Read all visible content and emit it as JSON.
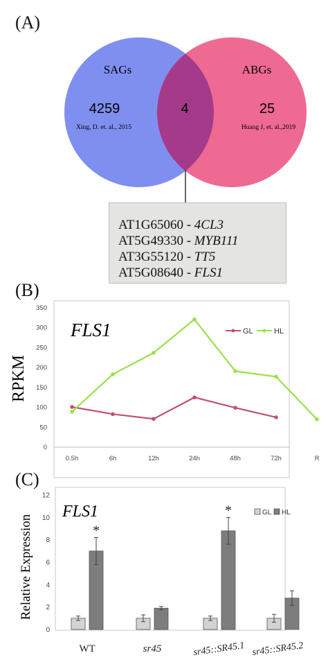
{
  "panels": {
    "a": "(A)",
    "b": "(B)",
    "c": "(C)"
  },
  "venn": {
    "left": {
      "label": "SAGs",
      "count": "4259",
      "citation": "Xing, D. et. al., 2015",
      "color": "#7f8ff0"
    },
    "overlap": {
      "count": "4",
      "color": "#a63a8a"
    },
    "right": {
      "label": "ABGs",
      "count": "25",
      "citation": "Huang J, et. al.,2019",
      "color": "#ee6a93"
    },
    "genes": [
      {
        "id": "AT1G65060",
        "sep": " - ",
        "name": "4CL3"
      },
      {
        "id": "AT5G49330",
        "sep": " - ",
        "name": "MYB111"
      },
      {
        "id": "AT3G55120",
        "sep": " - ",
        "name": "TT5"
      },
      {
        "id": "AT5G08640",
        "sep": " - ",
        "name": "FLS1"
      }
    ]
  },
  "chart_data": [
    {
      "type": "line",
      "title": "FLS1",
      "ylabel": "RPKM",
      "categories": [
        "0.5h",
        "6h",
        "12h",
        "24h",
        "48h",
        "72h",
        "R"
      ],
      "ylim": [
        0,
        350
      ],
      "yticks": [
        0,
        50,
        100,
        150,
        200,
        250,
        300,
        350
      ],
      "legend_position": "top-right",
      "grid": false,
      "series": [
        {
          "name": "GL",
          "color": "#c0506e",
          "values": [
            101,
            83,
            71,
            125,
            99,
            75,
            null
          ]
        },
        {
          "name": "HL",
          "color": "#9be04a",
          "values": [
            89,
            183,
            237,
            321,
            191,
            177,
            70
          ]
        }
      ]
    },
    {
      "type": "bar",
      "title": "FLS1",
      "ylabel": "Relative Expression",
      "categories": [
        "WT",
        "sr45",
        "sr45::SR45.1",
        "sr45::SR45.2"
      ],
      "ylim": [
        0,
        12
      ],
      "yticks": [
        0,
        2,
        4,
        6,
        8,
        10,
        12
      ],
      "legend_position": "top-right",
      "grid": false,
      "series": [
        {
          "name": "GL",
          "color": "#d3d3d3",
          "values": [
            1.0,
            1.0,
            1.0,
            1.0
          ],
          "errors": [
            0.2,
            0.3,
            0.2,
            0.35
          ]
        },
        {
          "name": "HL",
          "color": "#7d7d7d",
          "values": [
            7.0,
            1.9,
            8.8,
            2.8
          ],
          "errors": [
            1.2,
            0.15,
            1.2,
            0.65
          ]
        }
      ],
      "significance": [
        "*",
        "",
        "*",
        ""
      ]
    }
  ]
}
